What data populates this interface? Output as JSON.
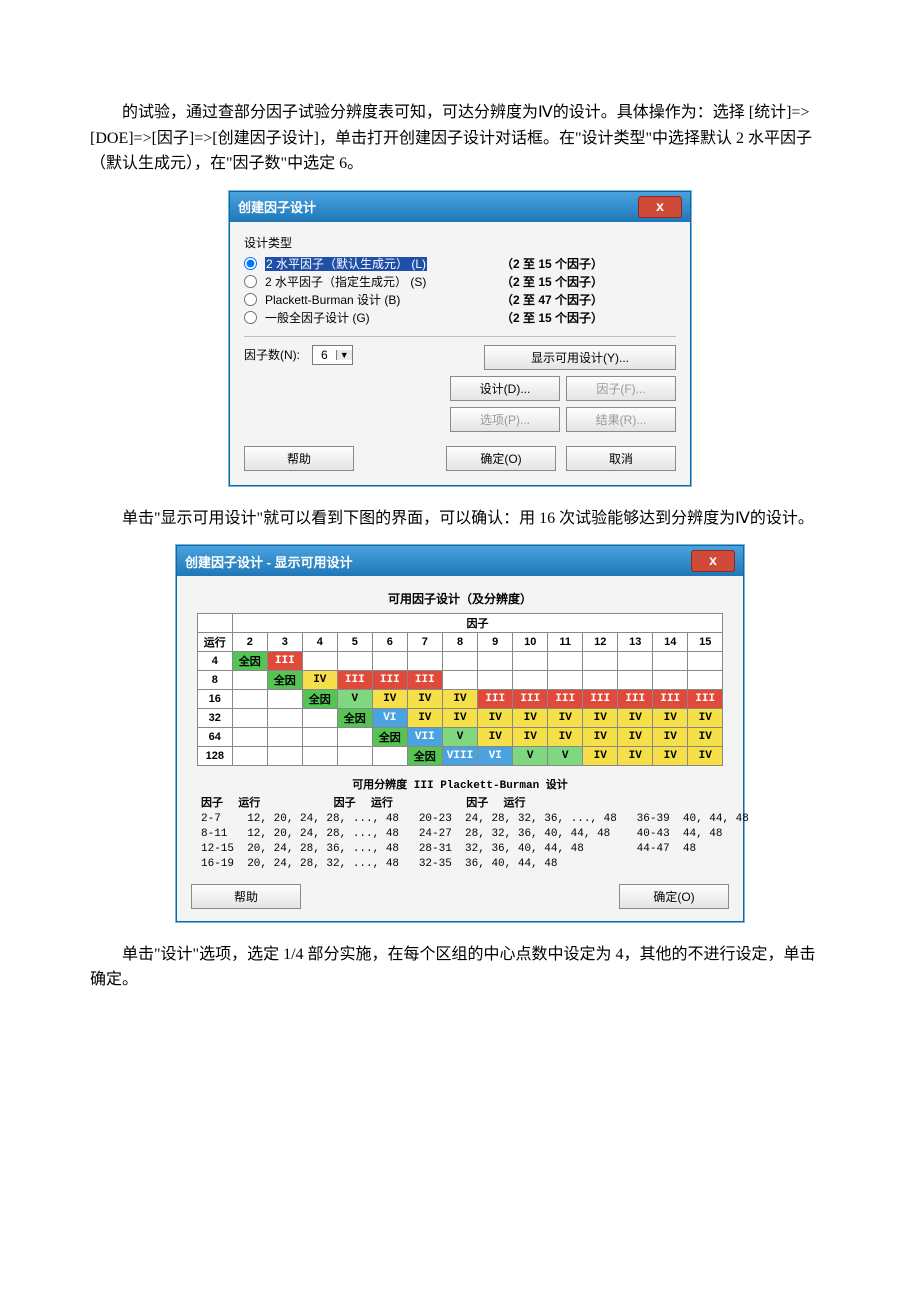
{
  "para1": "的试验，通过查部分因子试验分辨度表可知，可达分辨度为Ⅳ的设计。具体操作为：选择 [统计]=>[DOE]=>[因子]=>[创建因子设计]，单击打开创建因子设计对话框。在\"设计类型\"中选择默认 2 水平因子（默认生成元），在\"因子数\"中选定 6。",
  "para2": "单击\"显示可用设计\"就可以看到下图的界面，可以确认：用 16 次试验能够达到分辨度为Ⅳ的设计。",
  "para3": "单击\"设计\"选项，选定 1/4 部分实施，在每个区组的中心点数中设定为 4，其他的不进行设定，单击确定。",
  "dialog1": {
    "title": "创建因子设计",
    "close": "x",
    "section": "设计类型",
    "radios": [
      {
        "label_pre": "2 水平因子（默认生成元）",
        "label_suf": "(L)",
        "note": "（2 至 15 个因子）",
        "checked": true,
        "highlight": true
      },
      {
        "label_pre": "2 水平因子（指定生成元）",
        "label_suf": "(S)",
        "note": "（2 至 15 个因子）",
        "checked": false,
        "highlight": false
      },
      {
        "label_pre": "Plackett-Burman 设计",
        "label_suf": "(B)",
        "note": "（2 至 47 个因子）",
        "checked": false,
        "highlight": false
      },
      {
        "label_pre": "一般全因子设计",
        "label_suf": "(G)",
        "note": "（2 至 15 个因子）",
        "checked": false,
        "highlight": false
      }
    ],
    "factor_label": "因子数(N):",
    "factor_value": "6",
    "btn_show": "显示可用设计(Y)...",
    "btn_design": "设计(D)...",
    "btn_factor": "因子(F)...",
    "btn_option": "选项(P)...",
    "btn_result": "结果(R)...",
    "btn_help": "帮助",
    "btn_ok": "确定(O)",
    "btn_cancel": "取消"
  },
  "dialog2": {
    "title": "创建因子设计 - 显示可用设计",
    "close": "x",
    "heading": "可用因子设计（及分辨度）",
    "colgroup_label": "因子",
    "rowhdr": "运行",
    "columns": [
      "2",
      "3",
      "4",
      "5",
      "6",
      "7",
      "8",
      "9",
      "10",
      "11",
      "12",
      "13",
      "14",
      "15"
    ],
    "rows": [
      {
        "run": "4",
        "cells": [
          "全因",
          "III",
          "",
          "",
          "",
          "",
          "",
          "",
          "",
          "",
          "",
          "",
          "",
          ""
        ],
        "cls": [
          "full",
          "iii",
          "",
          "",
          "",
          "",
          "",
          "",
          "",
          "",
          "",
          "",
          "",
          ""
        ]
      },
      {
        "run": "8",
        "cells": [
          "",
          "全因",
          "IV",
          "III",
          "III",
          "III",
          "",
          "",
          "",
          "",
          "",
          "",
          "",
          ""
        ],
        "cls": [
          "",
          "full",
          "iv",
          "iii",
          "iii",
          "iii",
          "",
          "",
          "",
          "",
          "",
          "",
          "",
          ""
        ]
      },
      {
        "run": "16",
        "cells": [
          "",
          "",
          "全因",
          "V",
          "IV",
          "IV",
          "IV",
          "III",
          "III",
          "III",
          "III",
          "III",
          "III",
          "III"
        ],
        "cls": [
          "",
          "",
          "full",
          "v",
          "iv",
          "iv",
          "iv",
          "iii",
          "iii",
          "iii",
          "iii",
          "iii",
          "iii",
          "iii"
        ]
      },
      {
        "run": "32",
        "cells": [
          "",
          "",
          "",
          "全因",
          "VI",
          "IV",
          "IV",
          "IV",
          "IV",
          "IV",
          "IV",
          "IV",
          "IV",
          "IV"
        ],
        "cls": [
          "",
          "",
          "",
          "full",
          "vi",
          "iv",
          "iv",
          "iv",
          "iv",
          "iv",
          "iv",
          "iv",
          "iv",
          "iv"
        ]
      },
      {
        "run": "64",
        "cells": [
          "",
          "",
          "",
          "",
          "全因",
          "VII",
          "V",
          "IV",
          "IV",
          "IV",
          "IV",
          "IV",
          "IV",
          "IV"
        ],
        "cls": [
          "",
          "",
          "",
          "",
          "full",
          "vii",
          "v",
          "iv",
          "iv",
          "iv",
          "iv",
          "iv",
          "iv",
          "iv"
        ]
      },
      {
        "run": "128",
        "cells": [
          "",
          "",
          "",
          "",
          "",
          "全因",
          "VIII",
          "VI",
          "V",
          "V",
          "IV",
          "IV",
          "IV",
          "IV"
        ],
        "cls": [
          "",
          "",
          "",
          "",
          "",
          "full",
          "viii",
          "vi",
          "v",
          "v",
          "iv",
          "iv",
          "iv",
          "iv"
        ]
      }
    ],
    "pb_title": "可用分辨度 III Plackett-Burman 设计",
    "pb_header": {
      "c1": "因子",
      "c2": "运行",
      "c3": "因子",
      "c4": "运行",
      "c5": "因子",
      "c6": "运行"
    },
    "pb_rows": [
      {
        "c1": "2-7",
        "c2": "12, 20, 24, 28, ..., 48",
        "c3": "20-23",
        "c4": "24, 28, 32, 36, ..., 48",
        "c5": "36-39",
        "c6": "40, 44, 48"
      },
      {
        "c1": "8-11",
        "c2": "12, 20, 24, 28, ..., 48",
        "c3": "24-27",
        "c4": "28, 32, 36, 40, 44, 48",
        "c5": "40-43",
        "c6": "44, 48"
      },
      {
        "c1": "12-15",
        "c2": "20, 24, 28, 36, ..., 48",
        "c3": "28-31",
        "c4": "32, 36, 40, 44, 48",
        "c5": "44-47",
        "c6": "48"
      },
      {
        "c1": "16-19",
        "c2": "20, 24, 28, 32, ..., 48",
        "c3": "32-35",
        "c4": "36, 40, 44, 48",
        "c5": "",
        "c6": ""
      }
    ],
    "btn_help": "帮助",
    "btn_ok": "确定(O)"
  }
}
